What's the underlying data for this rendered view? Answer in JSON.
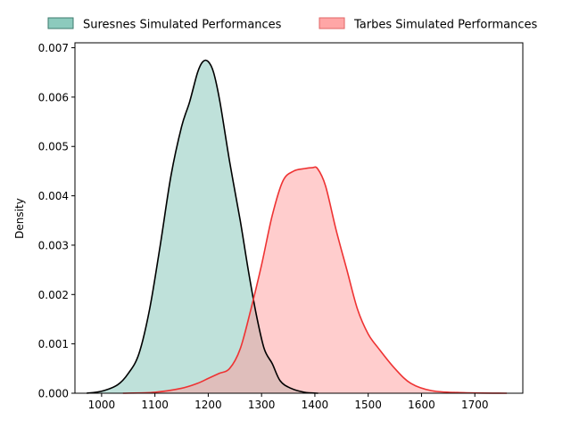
{
  "chart_data": {
    "type": "area",
    "title": "",
    "xlabel": "",
    "ylabel": "Density",
    "xlim": [
      950,
      1790
    ],
    "ylim": [
      0,
      0.0071
    ],
    "x_ticks": [
      "1000",
      "1100",
      "1200",
      "1300",
      "1400",
      "1500",
      "1600",
      "1700"
    ],
    "y_ticks": [
      "0.000",
      "0.001",
      "0.002",
      "0.003",
      "0.004",
      "0.005",
      "0.006",
      "0.007"
    ],
    "grid": false,
    "legend_position": "top, above plot",
    "series": [
      {
        "name": "Suresnes Simulated Performances",
        "fill_color": "#7fc4b6",
        "line_color": "#000000",
        "points": [
          [
            972,
            0.0
          ],
          [
            1000,
            4e-05
          ],
          [
            1030,
            0.00017
          ],
          [
            1050,
            0.0004
          ],
          [
            1070,
            0.0008
          ],
          [
            1090,
            0.0017
          ],
          [
            1110,
            0.003
          ],
          [
            1130,
            0.0044
          ],
          [
            1150,
            0.0054
          ],
          [
            1165,
            0.0059
          ],
          [
            1180,
            0.0065
          ],
          [
            1190,
            0.00672
          ],
          [
            1200,
            0.00672
          ],
          [
            1210,
            0.0065
          ],
          [
            1222,
            0.0059
          ],
          [
            1240,
            0.0047
          ],
          [
            1260,
            0.0035
          ],
          [
            1275,
            0.0025
          ],
          [
            1290,
            0.0016
          ],
          [
            1305,
            0.0009
          ],
          [
            1320,
            0.0006
          ],
          [
            1335,
            0.00025
          ],
          [
            1355,
            0.0001
          ],
          [
            1380,
            2e-05
          ],
          [
            1406,
            0.0
          ]
        ]
      },
      {
        "name": "Tarbes Simulated Performances",
        "fill_color": "#ff9c9c",
        "line_color": "#ee3333",
        "points": [
          [
            1040,
            0.0
          ],
          [
            1100,
            2e-05
          ],
          [
            1150,
            0.0001
          ],
          [
            1180,
            0.0002
          ],
          [
            1200,
            0.0003
          ],
          [
            1220,
            0.0004
          ],
          [
            1240,
            0.0005
          ],
          [
            1260,
            0.0009
          ],
          [
            1280,
            0.0017
          ],
          [
            1300,
            0.0026
          ],
          [
            1320,
            0.0036
          ],
          [
            1340,
            0.0043
          ],
          [
            1360,
            0.0045
          ],
          [
            1380,
            0.00455
          ],
          [
            1395,
            0.00457
          ],
          [
            1405,
            0.00455
          ],
          [
            1420,
            0.0042
          ],
          [
            1440,
            0.0033
          ],
          [
            1460,
            0.0025
          ],
          [
            1480,
            0.0017
          ],
          [
            1500,
            0.0012
          ],
          [
            1520,
            0.0009
          ],
          [
            1550,
            0.0005
          ],
          [
            1580,
            0.0002
          ],
          [
            1620,
            5e-05
          ],
          [
            1680,
            1e-05
          ],
          [
            1760,
            0.0
          ]
        ]
      }
    ]
  }
}
